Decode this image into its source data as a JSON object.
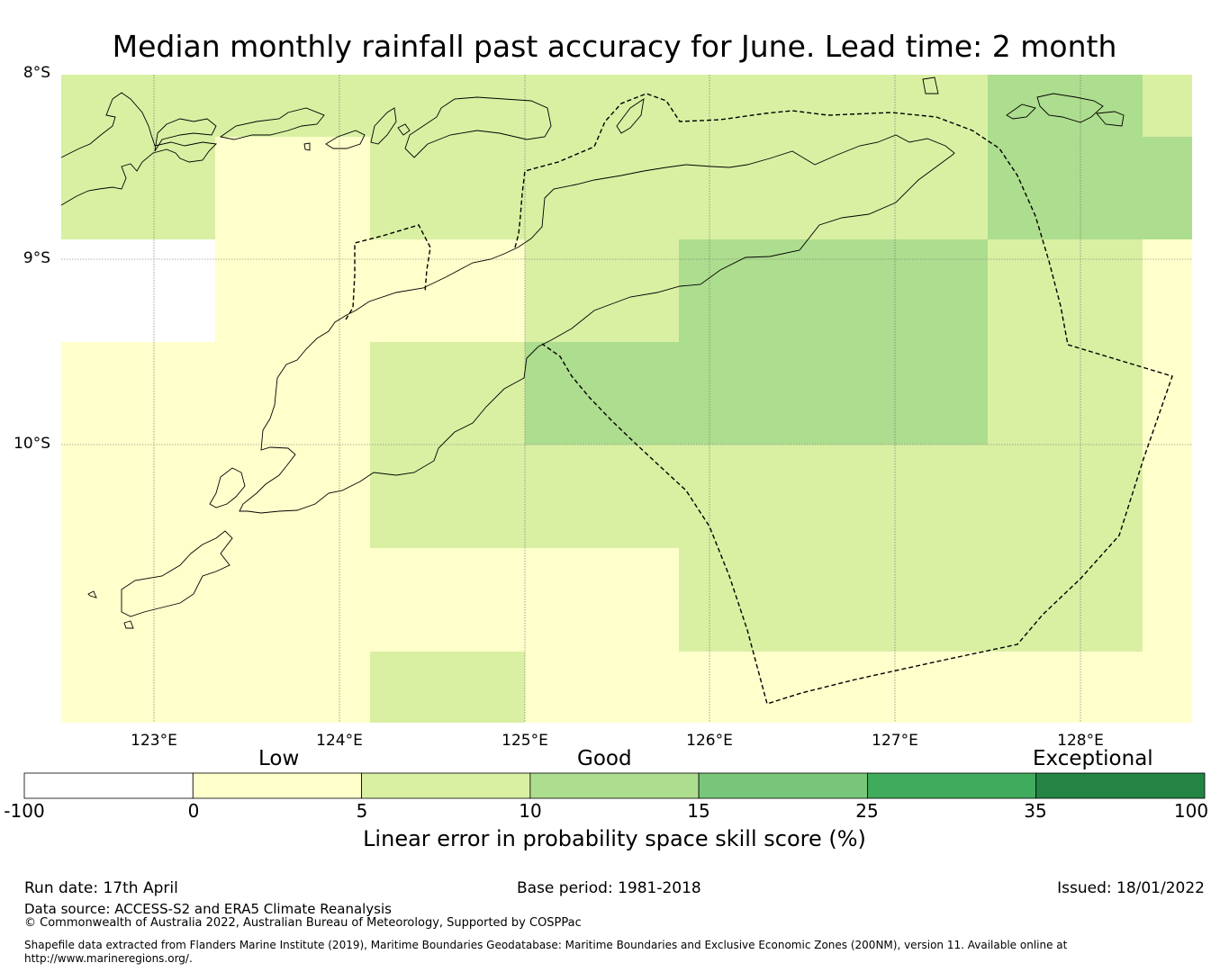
{
  "title": "Median monthly rainfall past accuracy for June. Lead time: 2 month",
  "map": {
    "lat_labels": [
      "8°S",
      "9°S",
      "10°S"
    ],
    "lon_labels": [
      "123°E",
      "124°E",
      "125°E",
      "126°E",
      "127°E",
      "128°E"
    ],
    "colors": {
      "white": "#ffffff",
      "low": "#ffffcc",
      "fair": "#d9f0a3",
      "good": "#addd8e",
      "coast": "#000000"
    }
  },
  "colorbar": {
    "category_labels": {
      "low": "Low",
      "good": "Good",
      "exceptional": "Exceptional"
    },
    "ticks": [
      "-100",
      "0",
      "5",
      "10",
      "15",
      "25",
      "35",
      "100"
    ],
    "colors": [
      "#ffffff",
      "#ffffcc",
      "#d9f0a3",
      "#addd8e",
      "#78c679",
      "#41ab5d",
      "#238443"
    ],
    "title": "Linear error in probability space skill score (%)"
  },
  "footer": {
    "run_date": "Run date: 17th April",
    "base_period": "Base period: 1981-2018",
    "issued": "Issued: 18/01/2022",
    "data_source": "Data source: ACCESS-S2 and ERA5 Climate Reanalysis",
    "copyright": "© Commonwealth of Australia 2022, Australian Bureau of Meteorology, Supported by COSPPac",
    "shapefile": "Shapefile data extracted from Flanders Marine Institute (2019), Maritime Boundaries Geodatabase: Maritime Boundaries and Exclusive Economic Zones (200NM), version 11. Available online at http://www.marineregions.org/."
  }
}
